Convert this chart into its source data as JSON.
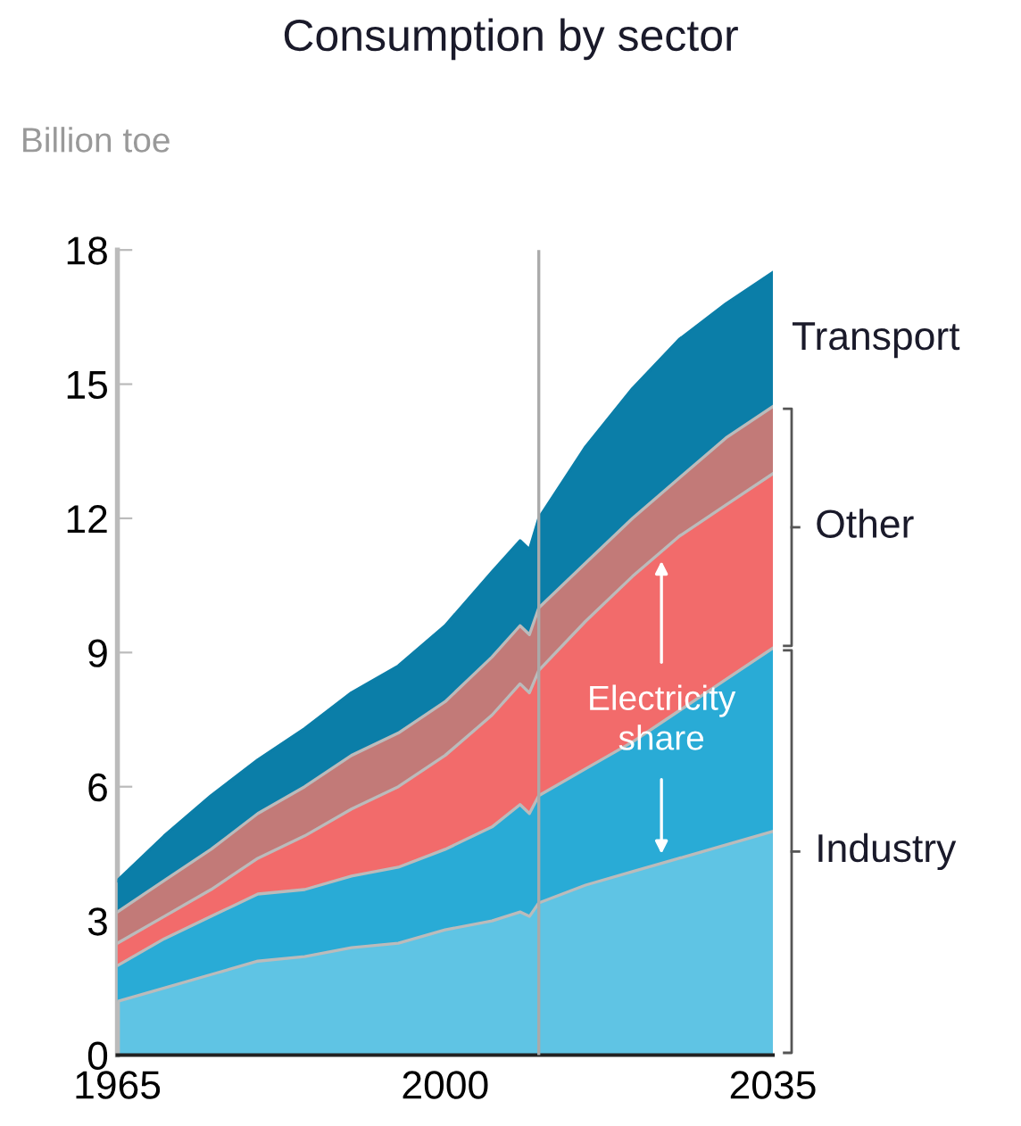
{
  "chart_data": {
    "type": "area",
    "title": "Consumption by sector",
    "ylabel": "Billion toe",
    "stacked": true,
    "x": [
      1965,
      1970,
      1975,
      1980,
      1985,
      1990,
      1995,
      2000,
      2005,
      2008,
      2009,
      2010,
      2015,
      2020,
      2025,
      2030,
      2035
    ],
    "series": [
      {
        "color": "#5fc4e4",
        "values": [
          1.2,
          1.5,
          1.8,
          2.1,
          2.2,
          2.4,
          2.5,
          2.8,
          3.0,
          3.2,
          3.1,
          3.4,
          3.8,
          4.1,
          4.4,
          4.7,
          5.0
        ]
      },
      {
        "color": "#29abd6",
        "values": [
          0.8,
          1.1,
          1.3,
          1.5,
          1.5,
          1.6,
          1.7,
          1.8,
          2.1,
          2.4,
          2.3,
          2.4,
          2.6,
          2.9,
          3.3,
          3.7,
          4.1
        ]
      },
      {
        "color": "#f26b6b",
        "values": [
          0.5,
          0.5,
          0.6,
          0.8,
          1.2,
          1.5,
          1.8,
          2.1,
          2.5,
          2.7,
          2.7,
          2.8,
          3.3,
          3.7,
          3.9,
          3.9,
          3.9
        ]
      },
      {
        "color": "#c27a78",
        "values": [
          0.7,
          0.8,
          0.9,
          1.0,
          1.1,
          1.2,
          1.2,
          1.2,
          1.3,
          1.3,
          1.3,
          1.4,
          1.3,
          1.3,
          1.3,
          1.5,
          1.5
        ]
      },
      {
        "name": "Transport",
        "color": "#0b7ea8",
        "values": [
          0.7,
          1.0,
          1.2,
          1.2,
          1.3,
          1.4,
          1.5,
          1.7,
          1.9,
          1.9,
          1.9,
          2.0,
          2.6,
          2.9,
          3.1,
          3.0,
          3.0
        ]
      }
    ],
    "xlim": [
      1965,
      2035
    ],
    "xticks": [
      1965,
      2000,
      2035
    ],
    "ylim": [
      0,
      18
    ],
    "yticks": [
      0,
      3,
      6,
      9,
      12,
      15,
      18
    ],
    "ref_lines": [
      {
        "axis": "x",
        "value": 2010,
        "color": "#aaaaaa"
      }
    ],
    "annotations": [
      "Other",
      "Industry",
      "Electricity\nshare"
    ],
    "grid": false,
    "legend": false
  }
}
